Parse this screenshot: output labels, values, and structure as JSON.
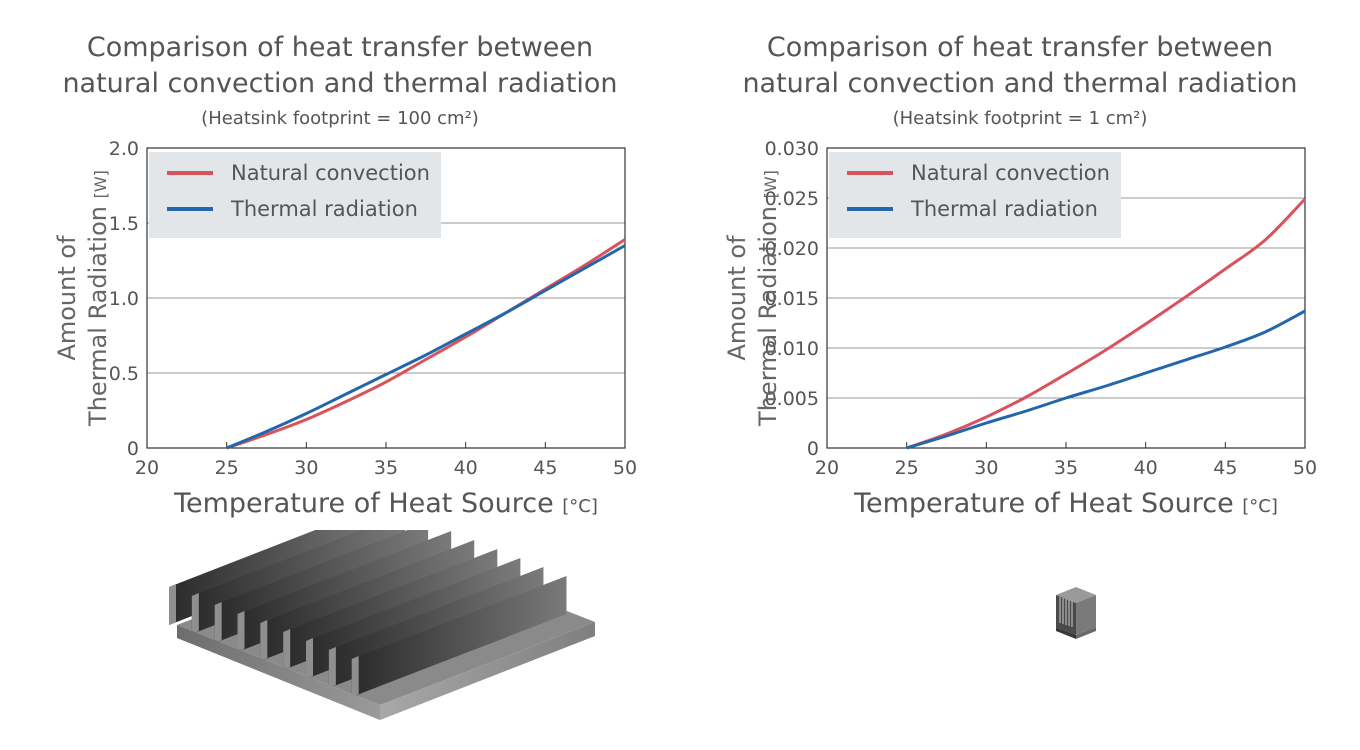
{
  "colors": {
    "natural_convection": "#d9535c",
    "thermal_radiation": "#2466ac",
    "legend_bg": "#e3e6e9",
    "grid": "#9a9a9a",
    "text": "#555555"
  },
  "charts": [
    {
      "title_line1": "Comparison of heat transfer between",
      "title_line2": "natural convection and thermal radiation",
      "subtitle": "(Heatsink footprint = 100 cm²)",
      "ylabel_line1": "Amount of",
      "ylabel_line2": "Thermal Radiation",
      "ylabel_unit": "[W]",
      "xlabel": "Temperature of Heat Source",
      "xlabel_unit": "[°C]",
      "legend": {
        "natural": "Natural convection",
        "radiation": "Thermal radiation"
      },
      "illustration": "large-finned-heatsink-icon"
    },
    {
      "title_line1": "Comparison of heat transfer between",
      "title_line2": "natural convection and thermal radiation",
      "subtitle": "(Heatsink footprint = 1 cm²)",
      "ylabel_line1": "Amount of",
      "ylabel_line2": "Thermal Radiation",
      "ylabel_unit": "[W]",
      "xlabel": "Temperature of Heat Source",
      "xlabel_unit": "[°C]",
      "legend": {
        "natural": "Natural convection",
        "radiation": "Thermal radiation"
      },
      "illustration": "small-heatsink-icon"
    }
  ],
  "chart_data": [
    {
      "type": "line",
      "xlim": [
        20,
        50
      ],
      "ylim": [
        0,
        2.0
      ],
      "xticks": [
        "20",
        "25",
        "30",
        "35",
        "40",
        "45",
        "50"
      ],
      "yticks": [
        "0",
        "0.5",
        "1.0",
        "1.5",
        "2.0"
      ],
      "grid": "horizontal",
      "legend_position": "top-left",
      "series": [
        {
          "name": "Natural convection",
          "x": [
            25,
            27.5,
            30,
            32.5,
            35,
            37.5,
            40,
            42.5,
            45,
            47.5,
            50
          ],
          "y": [
            0,
            0.09,
            0.19,
            0.31,
            0.44,
            0.59,
            0.74,
            0.9,
            1.06,
            1.22,
            1.39
          ]
        },
        {
          "name": "Thermal radiation",
          "x": [
            25,
            27.5,
            30,
            32.5,
            35,
            37.5,
            40,
            42.5,
            45,
            47.5,
            50
          ],
          "y": [
            0,
            0.11,
            0.23,
            0.36,
            0.49,
            0.62,
            0.76,
            0.9,
            1.05,
            1.2,
            1.35
          ]
        }
      ]
    },
    {
      "type": "line",
      "xlim": [
        20,
        50
      ],
      "ylim": [
        0,
        0.03
      ],
      "xticks": [
        "20",
        "25",
        "30",
        "35",
        "40",
        "45",
        "50"
      ],
      "yticks": [
        "0",
        "0.005",
        "0.010",
        "0.015",
        "0.020",
        "0.025",
        "0.030"
      ],
      "grid": "horizontal",
      "legend_position": "top-left",
      "series": [
        {
          "name": "Natural convection",
          "x": [
            25,
            27.5,
            30,
            32.5,
            35,
            37.5,
            40,
            42.5,
            45,
            47.5,
            50
          ],
          "y": [
            0,
            0.0014,
            0.0031,
            0.0051,
            0.0074,
            0.0098,
            0.0124,
            0.0151,
            0.0179,
            0.0208,
            0.0249
          ]
        },
        {
          "name": "Thermal radiation",
          "x": [
            25,
            27.5,
            30,
            32.5,
            35,
            37.5,
            40,
            42.5,
            45,
            47.5,
            50
          ],
          "y": [
            0,
            0.0012,
            0.0025,
            0.0037,
            0.005,
            0.0062,
            0.0075,
            0.0088,
            0.0101,
            0.0116,
            0.0137
          ]
        }
      ]
    }
  ]
}
